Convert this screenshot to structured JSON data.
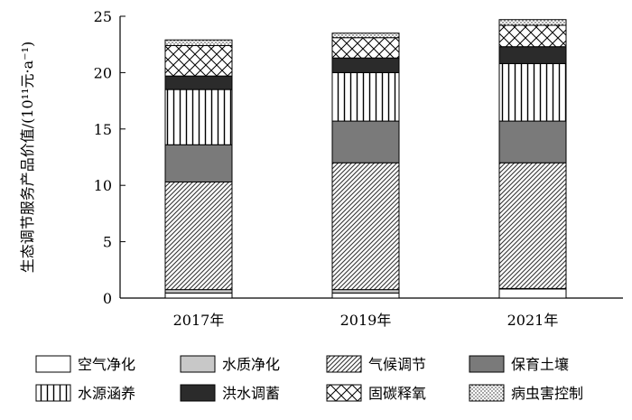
{
  "chart_data": {
    "type": "bar",
    "stacked": true,
    "title": "",
    "xlabel": "",
    "ylabel": "生态调节服务产品价值/(10¹¹元·a⁻¹)",
    "ylim": [
      0,
      25
    ],
    "yticks": [
      "0",
      "5",
      "10",
      "15",
      "20",
      "25"
    ],
    "categories": [
      "2017年",
      "2019年",
      "2021年"
    ],
    "grid": false,
    "legend_position": "bottom",
    "series": [
      {
        "name": "空气净化",
        "pattern": "white",
        "values": [
          0.45,
          0.45,
          0.8
        ]
      },
      {
        "name": "水质净化",
        "pattern": "gray",
        "values": [
          0.3,
          0.3,
          0.05
        ]
      },
      {
        "name": "气候调节",
        "pattern": "diag",
        "values": [
          9.55,
          11.25,
          11.15
        ]
      },
      {
        "name": "保育土壤",
        "pattern": "dark",
        "values": [
          3.3,
          3.7,
          3.7
        ]
      },
      {
        "name": "水源涵养",
        "pattern": "vert",
        "values": [
          4.9,
          4.3,
          5.1
        ]
      },
      {
        "name": "洪水调蓄",
        "pattern": "black",
        "values": [
          1.2,
          1.3,
          1.5
        ]
      },
      {
        "name": "固碳释氧",
        "pattern": "cross",
        "values": [
          2.7,
          1.8,
          1.9
        ]
      },
      {
        "name": "病虫害控制",
        "pattern": "dots",
        "values": [
          0.5,
          0.4,
          0.5
        ]
      }
    ]
  }
}
